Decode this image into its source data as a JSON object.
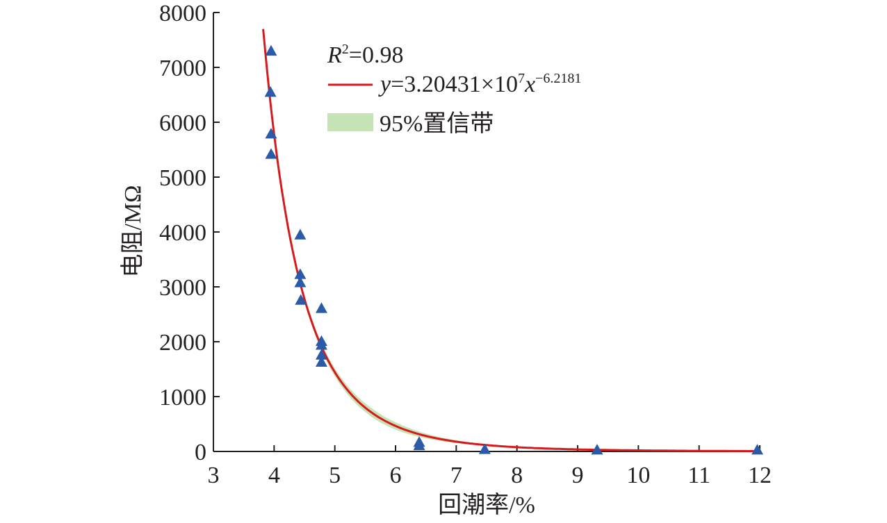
{
  "chart_data": {
    "type": "scatter",
    "xlabel": "回潮率/%",
    "ylabel": "电阻/MΩ",
    "xlim": [
      3,
      12
    ],
    "ylim": [
      0,
      8000
    ],
    "xticks": [
      "3",
      "4",
      "5",
      "6",
      "7",
      "8",
      "9",
      "10",
      "11",
      "12"
    ],
    "yticks": [
      "0",
      "1000",
      "2000",
      "3000",
      "4000",
      "5000",
      "6000",
      "7000",
      "8000"
    ],
    "grid": false,
    "legend_position": "top-right",
    "r2_label": {
      "var": "R",
      "sup": "2",
      "rest": "=0.98"
    },
    "fit": {
      "name_parts": {
        "y": "y",
        "eq": "=3.20431×10",
        "exp7": "7",
        "x": "x",
        "exp": "−6.2181"
      },
      "coefficient": 32043100,
      "exponent": -6.2181,
      "x_range": [
        3.82,
        12
      ],
      "color": "#d7191c"
    },
    "confidence_band": {
      "name": "95%置信带",
      "color": "#c5e3b5",
      "x_range": [
        4.05,
        8.2
      ]
    },
    "marker_color": "#2b5aa8",
    "points": [
      {
        "x": 3.95,
        "y": 7300
      },
      {
        "x": 3.94,
        "y": 6550
      },
      {
        "x": 3.95,
        "y": 5790
      },
      {
        "x": 3.95,
        "y": 5420
      },
      {
        "x": 4.43,
        "y": 3950
      },
      {
        "x": 4.43,
        "y": 3230
      },
      {
        "x": 4.43,
        "y": 3080
      },
      {
        "x": 4.44,
        "y": 2760
      },
      {
        "x": 4.78,
        "y": 2610
      },
      {
        "x": 4.78,
        "y": 2010
      },
      {
        "x": 4.78,
        "y": 1940
      },
      {
        "x": 4.78,
        "y": 1760
      },
      {
        "x": 4.78,
        "y": 1630
      },
      {
        "x": 6.39,
        "y": 170
      },
      {
        "x": 6.39,
        "y": 110
      },
      {
        "x": 7.47,
        "y": 40
      },
      {
        "x": 9.32,
        "y": 30
      },
      {
        "x": 11.96,
        "y": 30
      }
    ]
  }
}
